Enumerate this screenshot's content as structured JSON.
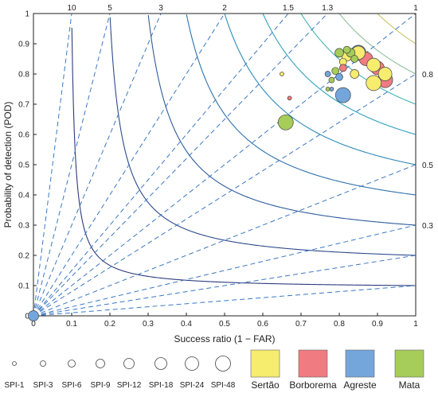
{
  "chart_data": {
    "type": "scatter",
    "subtype": "performance-diagram",
    "xlabel": "Success ratio (1 − FAR)",
    "ylabel": "Probability of detection (POD)",
    "xlim": [
      0,
      1
    ],
    "ylim": [
      0,
      1
    ],
    "x_ticks": [
      "0",
      "0.1",
      "0.2",
      "0.3",
      "0.4",
      "0.5",
      "0.6",
      "0.7",
      "0.8",
      "0.9",
      "1"
    ],
    "y_ticks": [
      "0",
      "0.1",
      "0.2",
      "0.3",
      "0.4",
      "0.5",
      "0.6",
      "0.7",
      "0.8",
      "0.9",
      "1"
    ],
    "x_tick_values": [
      0,
      0.1,
      0.2,
      0.3,
      0.4,
      0.5,
      0.6,
      0.7,
      0.8,
      0.9,
      1
    ],
    "y_tick_values": [
      0,
      0.1,
      0.2,
      0.3,
      0.4,
      0.5,
      0.6,
      0.7,
      0.8,
      0.9,
      1
    ],
    "csi_contours": [
      0.1,
      0.2,
      0.3,
      0.4,
      0.5,
      0.6,
      0.7,
      0.8,
      0.9
    ],
    "csi_colors": [
      "#2d3a7c",
      "#2d4a8c",
      "#2f5c9c",
      "#2f72ac",
      "#2f8bb8",
      "#2fa2bc",
      "#45b5b2",
      "#8fc09b",
      "#c9c46a"
    ],
    "bias_lines": [
      {
        "value": 10,
        "top_label": "10"
      },
      {
        "value": 5,
        "top_label": "5"
      },
      {
        "value": 3,
        "top_label": "3"
      },
      {
        "value": 2,
        "top_label": "2"
      },
      {
        "value": 1.5,
        "top_label": "1.5"
      },
      {
        "value": 1.3,
        "top_label": "1.3"
      },
      {
        "value": 1,
        "top_label": "1"
      },
      {
        "value": 0.8,
        "right_label": "0.8"
      },
      {
        "value": 0.5,
        "right_label": "0.5"
      },
      {
        "value": 0.3,
        "right_label": "0.3"
      },
      {
        "value": 0.2
      },
      {
        "value": 0.1
      }
    ],
    "bias_line_color": "#3d78c0",
    "regions": [
      {
        "name": "Sertão",
        "color": "#f6ec6e"
      },
      {
        "name": "Borborema",
        "color": "#f07b80"
      },
      {
        "name": "Agreste",
        "color": "#74a6dc"
      },
      {
        "name": "Mata",
        "color": "#a6cc5a"
      }
    ],
    "sizes": [
      {
        "label": "SPI-1",
        "r": 2.5
      },
      {
        "label": "SPI-3",
        "r": 3.5
      },
      {
        "label": "SPI-6",
        "r": 4.5
      },
      {
        "label": "SPI-9",
        "r": 5.5
      },
      {
        "label": "SPI-12",
        "r": 6.5
      },
      {
        "label": "SPI-18",
        "r": 7.5
      },
      {
        "label": "SPI-24",
        "r": 8.5
      },
      {
        "label": "SPI-48",
        "r": 9.5
      }
    ],
    "points": [
      {
        "x": 0.66,
        "y": 0.64,
        "region": "Mata",
        "spi": "SPI-48"
      },
      {
        "x": 0.81,
        "y": 0.73,
        "region": "Agreste",
        "spi": "SPI-48"
      },
      {
        "x": 0.92,
        "y": 0.78,
        "region": "Borborema",
        "spi": "SPI-48"
      },
      {
        "x": 0.89,
        "y": 0.77,
        "region": "Sertão",
        "spi": "SPI-48"
      },
      {
        "x": 0.85,
        "y": 0.87,
        "region": "Agreste",
        "spi": "SPI-48"
      },
      {
        "x": 0.9,
        "y": 0.82,
        "region": "Borborema",
        "spi": "SPI-24"
      },
      {
        "x": 0.92,
        "y": 0.8,
        "region": "Sertão",
        "spi": "SPI-24"
      },
      {
        "x": 0.87,
        "y": 0.85,
        "region": "Borborema",
        "spi": "SPI-24"
      },
      {
        "x": 0.89,
        "y": 0.83,
        "region": "Sertão",
        "spi": "SPI-24"
      },
      {
        "x": 0.85,
        "y": 0.87,
        "region": "Sertão",
        "spi": "SPI-24"
      },
      {
        "x": 0.82,
        "y": 0.86,
        "region": "Sertão",
        "spi": "SPI-12"
      },
      {
        "x": 0.84,
        "y": 0.8,
        "region": "Sertão",
        "spi": "SPI-9"
      },
      {
        "x": 0.83,
        "y": 0.87,
        "region": "Mata",
        "spi": "SPI-9"
      },
      {
        "x": 0.82,
        "y": 0.88,
        "region": "Mata",
        "spi": "SPI-6"
      },
      {
        "x": 0.8,
        "y": 0.87,
        "region": "Mata",
        "spi": "SPI-9"
      },
      {
        "x": 0.84,
        "y": 0.85,
        "region": "Mata",
        "spi": "SPI-6"
      },
      {
        "x": 0.81,
        "y": 0.84,
        "region": "Sertão",
        "spi": "SPI-6"
      },
      {
        "x": 0.81,
        "y": 0.82,
        "region": "Borborema",
        "spi": "SPI-6"
      },
      {
        "x": 0.8,
        "y": 0.79,
        "region": "Agreste",
        "spi": "SPI-6"
      },
      {
        "x": 0.79,
        "y": 0.81,
        "region": "Mata",
        "spi": "SPI-6"
      },
      {
        "x": 0.77,
        "y": 0.8,
        "region": "Agreste",
        "spi": "SPI-3"
      },
      {
        "x": 0.78,
        "y": 0.78,
        "region": "Mata",
        "spi": "SPI-3"
      },
      {
        "x": 0.78,
        "y": 0.75,
        "region": "Agreste",
        "spi": "SPI-1"
      },
      {
        "x": 0.77,
        "y": 0.75,
        "region": "Mata",
        "spi": "SPI-1"
      },
      {
        "x": 0.65,
        "y": 0.8,
        "region": "Sertão",
        "spi": "SPI-1"
      },
      {
        "x": 0.67,
        "y": 0.72,
        "region": "Borborema",
        "spi": "SPI-1"
      },
      {
        "x": 0.0,
        "y": 0.0,
        "region": "Agreste",
        "spi": "SPI-12"
      }
    ]
  }
}
